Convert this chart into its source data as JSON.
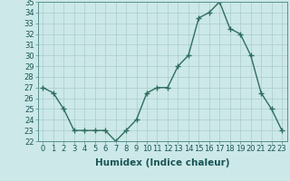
{
  "x": [
    0,
    1,
    2,
    3,
    4,
    5,
    6,
    7,
    8,
    9,
    10,
    11,
    12,
    13,
    14,
    15,
    16,
    17,
    18,
    19,
    20,
    21,
    22,
    23
  ],
  "y": [
    27.0,
    26.5,
    25.0,
    23.0,
    23.0,
    23.0,
    23.0,
    22.0,
    23.0,
    24.0,
    26.5,
    27.0,
    27.0,
    29.0,
    30.0,
    33.5,
    34.0,
    35.0,
    32.5,
    32.0,
    30.0,
    26.5,
    25.0,
    23.0
  ],
  "xlabel": "Humidex (Indice chaleur)",
  "ylim": [
    22,
    35
  ],
  "xlim": [
    -0.5,
    23.5
  ],
  "yticks": [
    22,
    23,
    24,
    25,
    26,
    27,
    28,
    29,
    30,
    31,
    32,
    33,
    34,
    35
  ],
  "xticks": [
    0,
    1,
    2,
    3,
    4,
    5,
    6,
    7,
    8,
    9,
    10,
    11,
    12,
    13,
    14,
    15,
    16,
    17,
    18,
    19,
    20,
    21,
    22,
    23
  ],
  "line_color": "#2e6e5e",
  "marker": "+",
  "bg_color": "#cce8e8",
  "grid_color": "#aacccc",
  "label_fontsize": 7.5,
  "tick_fontsize": 6.0
}
